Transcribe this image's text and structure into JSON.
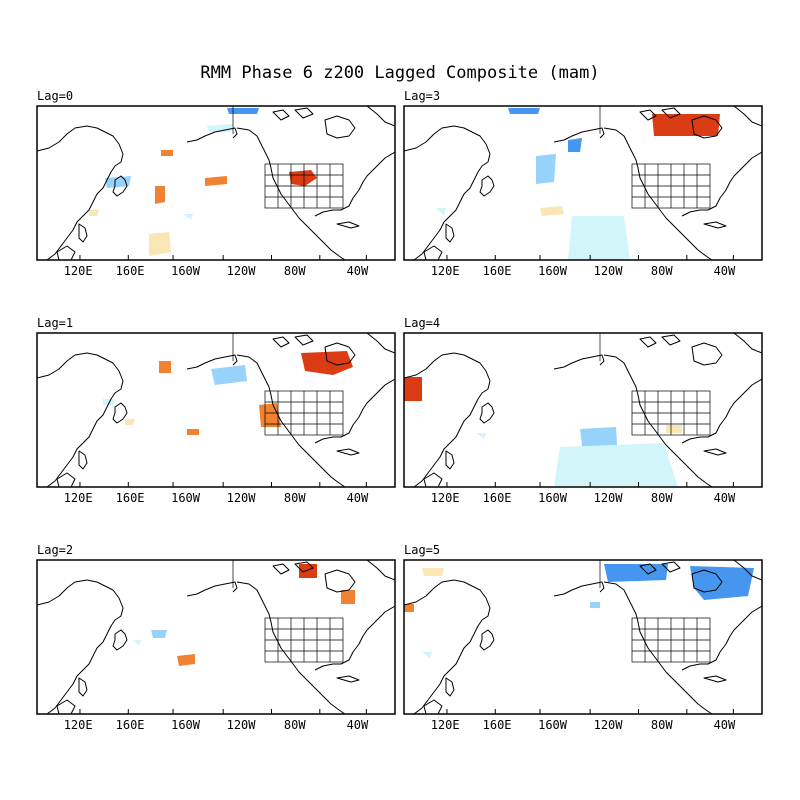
{
  "title": "RMM Phase 6 z200 Lagged Composite (mam)",
  "colors": {
    "strong_positive": "#dc3c14",
    "positive": "#f08232",
    "weak_positive": "#fae6b4",
    "strong_negative": "#4696f0",
    "negative": "#96d2fa",
    "weak_negative": "#d2f5fa"
  },
  "x_tick_labels": [
    "120E",
    "160E",
    "160W",
    "120W",
    "80W",
    "40W"
  ],
  "panels": [
    {
      "label": "Lag=0",
      "column": "left",
      "row": 0
    },
    {
      "label": "Lag=1",
      "column": "left",
      "row": 1
    },
    {
      "label": "Lag=2",
      "column": "left",
      "row": 2
    },
    {
      "label": "Lag=3",
      "column": "right",
      "row": 0
    },
    {
      "label": "Lag=4",
      "column": "right",
      "row": 1
    },
    {
      "label": "Lag=5",
      "column": "right",
      "row": 2
    }
  ]
}
